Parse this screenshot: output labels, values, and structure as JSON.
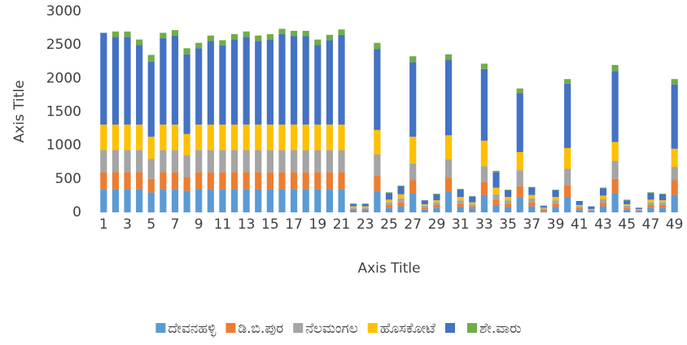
{
  "chart_data": {
    "type": "stacked_bar",
    "x_axis_title": "Axis Title",
    "y_axis_title": "Axis Title",
    "categories": [
      1,
      null,
      3,
      null,
      5,
      null,
      7,
      null,
      9,
      null,
      11,
      null,
      13,
      null,
      15,
      null,
      17,
      null,
      19,
      null,
      21,
      null,
      23,
      null,
      25,
      null,
      27,
      null,
      29,
      null,
      31,
      null,
      33,
      null,
      35,
      null,
      37,
      null,
      39,
      null,
      41,
      null,
      43,
      null,
      45,
      null,
      47,
      null,
      49
    ],
    "ylim": [
      0,
      3000
    ],
    "yticks": [
      0,
      500,
      1000,
      1500,
      2000,
      2500,
      3000
    ],
    "grid": false,
    "legend": "bottom",
    "series": [
      {
        "name": "ದೇವನಹಳ್ಳಿ",
        "color": "#5b9bd5",
        "values": [
          350,
          350,
          350,
          350,
          300,
          350,
          350,
          320,
          350,
          350,
          350,
          350,
          350,
          350,
          350,
          350,
          350,
          350,
          350,
          350,
          350,
          30,
          30,
          320,
          70,
          90,
          280,
          40,
          70,
          310,
          80,
          60,
          260,
          110,
          80,
          230,
          90,
          20,
          80,
          230,
          40,
          20,
          90,
          290,
          40,
          20,
          70,
          70,
          260
        ]
      },
      {
        "name": "ಡಿ.ಬಿ.ಪುರ",
        "color": "#ed7d31",
        "values": [
          250,
          250,
          250,
          250,
          200,
          250,
          250,
          210,
          250,
          250,
          250,
          250,
          250,
          250,
          250,
          250,
          250,
          250,
          250,
          250,
          250,
          20,
          20,
          220,
          40,
          60,
          200,
          30,
          40,
          210,
          50,
          30,
          190,
          80,
          50,
          160,
          60,
          20,
          50,
          180,
          30,
          10,
          50,
          210,
          30,
          10,
          40,
          40,
          220
        ]
      },
      {
        "name": "ನೆಲಮಂಗಲ",
        "color": "#a5a5a5",
        "values": [
          330,
          330,
          330,
          330,
          300,
          330,
          330,
          320,
          330,
          330,
          330,
          330,
          330,
          330,
          330,
          330,
          330,
          330,
          330,
          330,
          330,
          20,
          20,
          330,
          40,
          60,
          250,
          30,
          40,
          270,
          50,
          30,
          240,
          80,
          50,
          240,
          60,
          20,
          50,
          240,
          20,
          10,
          60,
          270,
          30,
          10,
          40,
          40,
          200
        ]
      },
      {
        "name": "ಹೊಸಕೋಟೆ",
        "color": "#ffc000",
        "values": [
          380,
          380,
          380,
          380,
          330,
          380,
          380,
          320,
          380,
          380,
          380,
          380,
          380,
          380,
          380,
          380,
          380,
          380,
          380,
          380,
          380,
          20,
          20,
          360,
          40,
          60,
          400,
          20,
          30,
          360,
          50,
          30,
          380,
          100,
          50,
          270,
          50,
          10,
          50,
          310,
          20,
          10,
          50,
          280,
          20,
          10,
          40,
          30,
          270
        ]
      },
      {
        "color": "#4472c4",
        "values": [
          1370,
          1310,
          1310,
          1190,
          1120,
          1290,
          1330,
          1190,
          1140,
          1250,
          1180,
          1270,
          1310,
          1250,
          1270,
          1350,
          1320,
          1320,
          1190,
          1260,
          1340,
          40,
          40,
          1210,
          100,
          120,
          1110,
          60,
          90,
          1130,
          110,
          90,
          1070,
          230,
          100,
          880,
          110,
          30,
          100,
          960,
          60,
          40,
          110,
          1060,
          60,
          20,
          100,
          90,
          960
        ]
      },
      {
        "name": "ಶೇ.ವಾರು",
        "color": "#70ad47",
        "values": [
          0,
          80,
          80,
          80,
          100,
          80,
          80,
          90,
          80,
          80,
          80,
          80,
          80,
          80,
          80,
          80,
          80,
          80,
          80,
          80,
          80,
          0,
          0,
          90,
          10,
          10,
          90,
          0,
          10,
          80,
          10,
          0,
          80,
          20,
          10,
          70,
          10,
          0,
          10,
          70,
          0,
          0,
          10,
          90,
          10,
          0,
          10,
          10,
          80
        ]
      }
    ]
  }
}
